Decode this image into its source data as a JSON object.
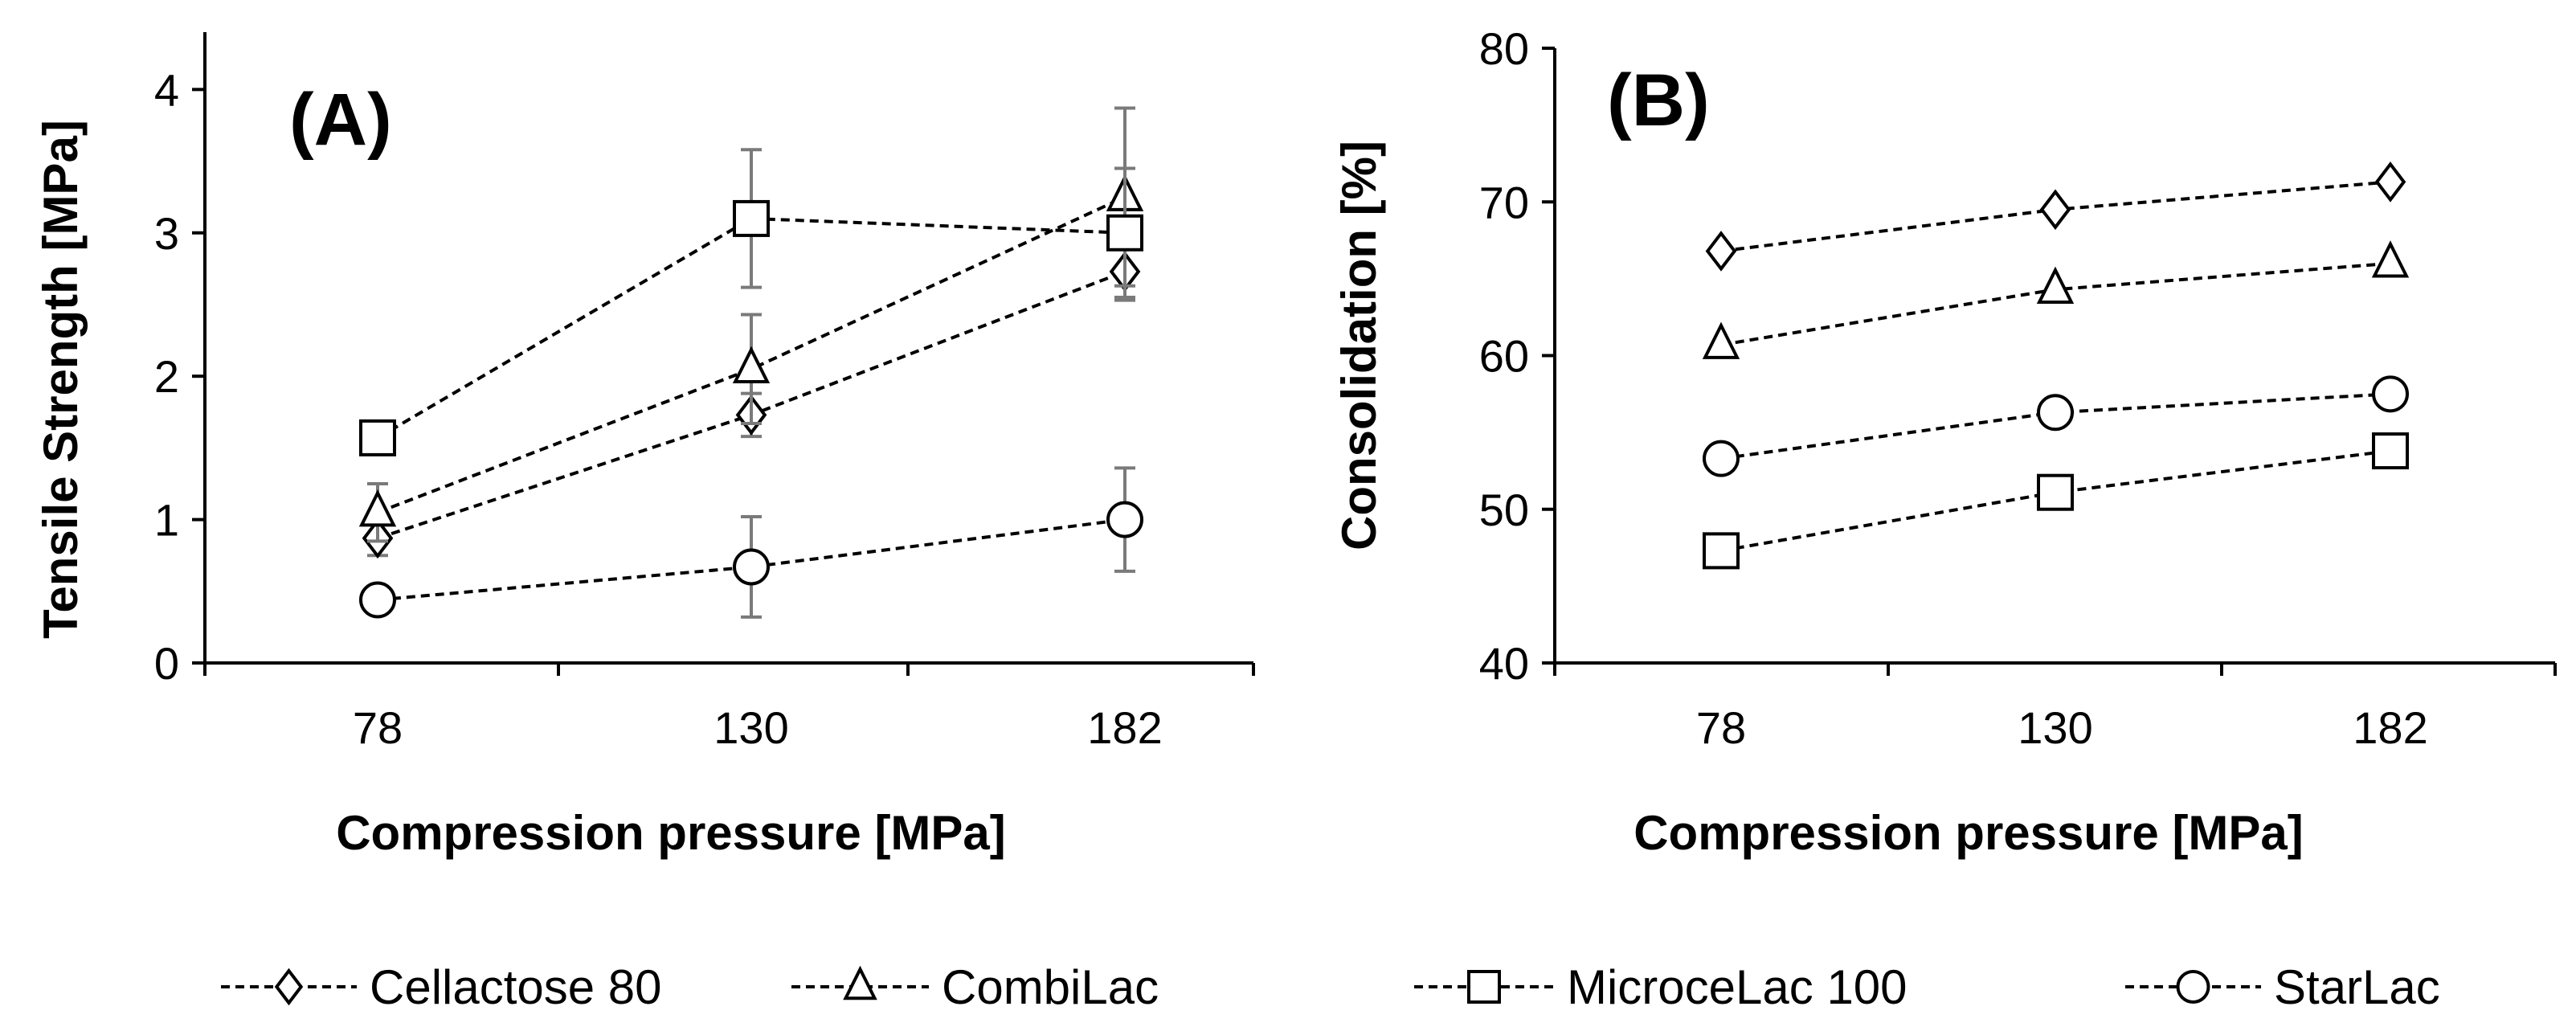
{
  "chart_data": [
    {
      "panel": "(A)",
      "type": "line",
      "xlabel": "Compression pressure [MPa]",
      "ylabel": "Tensile Strength [MPa]",
      "categories": [
        "78",
        "130",
        "182"
      ],
      "ylim": [
        0,
        4.4
      ],
      "yticks": [
        "0",
        "1",
        "2",
        "3",
        "4"
      ],
      "series": [
        {
          "name": "Cellactose 80",
          "marker": "diamond",
          "values": [
            0.87,
            1.73,
            2.73
          ],
          "errors": [
            0.12,
            0.15,
            0.2
          ]
        },
        {
          "name": "CombiLac",
          "marker": "triangle",
          "values": [
            1.05,
            2.05,
            3.25
          ],
          "errors": [
            0.2,
            0.38,
            0.62
          ]
        },
        {
          "name": "MicroceLac 100",
          "marker": "square",
          "values": [
            1.57,
            3.1,
            3.0
          ],
          "errors": [
            0.08,
            0.48,
            0.45
          ]
        },
        {
          "name": "StarLac",
          "marker": "circle",
          "values": [
            0.44,
            0.67,
            1.0
          ],
          "errors": [
            0.06,
            0.35,
            0.36
          ]
        }
      ]
    },
    {
      "panel": "(B)",
      "type": "line",
      "xlabel": "Compression pressure [MPa]",
      "ylabel": "Consolidation [%]",
      "categories": [
        "78",
        "130",
        "182"
      ],
      "ylim": [
        40,
        80
      ],
      "yticks": [
        "40",
        "50",
        "60",
        "70",
        "80"
      ],
      "series": [
        {
          "name": "Cellactose 80",
          "marker": "diamond",
          "values": [
            66.8,
            69.5,
            71.3
          ]
        },
        {
          "name": "CombiLac",
          "marker": "triangle",
          "values": [
            60.7,
            64.3,
            66.0
          ]
        },
        {
          "name": "MicroceLac 100",
          "marker": "square",
          "values": [
            47.3,
            51.1,
            53.8
          ]
        },
        {
          "name": "StarLac",
          "marker": "circle",
          "values": [
            53.3,
            56.3,
            57.5
          ]
        }
      ]
    }
  ],
  "legend": [
    {
      "label": "Cellactose 80",
      "marker": "diamond"
    },
    {
      "label": "CombiLac",
      "marker": "triangle"
    },
    {
      "label": "MicroceLac 100",
      "marker": "square"
    },
    {
      "label": "StarLac",
      "marker": "circle"
    }
  ]
}
